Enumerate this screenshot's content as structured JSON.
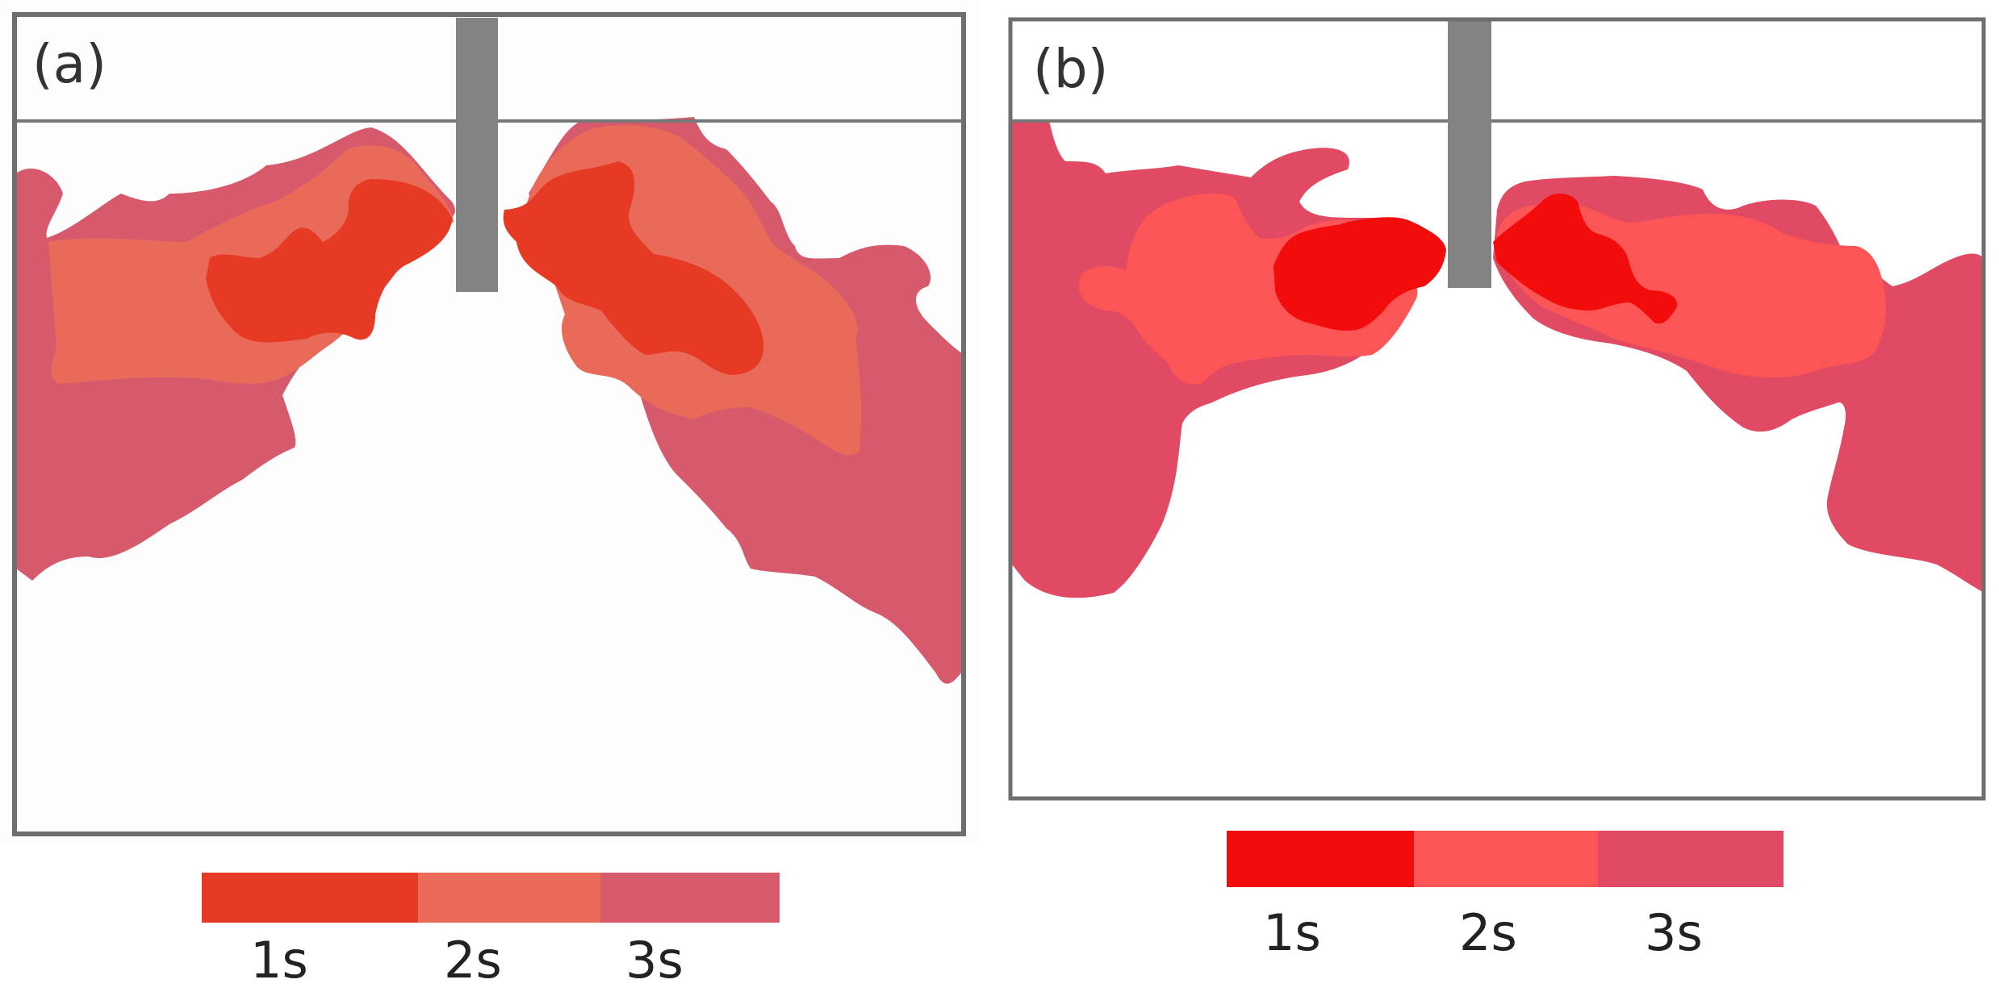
{
  "panels": [
    {
      "label": "(a)",
      "colors": {
        "t1": "#e63a24",
        "t2": "#ea6a5a",
        "t3": "#d65a6c"
      },
      "legend": [
        {
          "label": "1s",
          "color": "#e63a24"
        },
        {
          "label": "2s",
          "color": "#ea6a5a"
        },
        {
          "label": "3s",
          "color": "#d65a6c"
        }
      ]
    },
    {
      "label": "(b)",
      "colors": {
        "t1": "#f20c0c",
        "t2": "#fb5556",
        "t3": "#e04a62"
      },
      "legend": [
        {
          "label": "1s",
          "color": "#f20c0c"
        },
        {
          "label": "2s",
          "color": "#fb5556"
        },
        {
          "label": "3s",
          "color": "#e04a62"
        }
      ]
    }
  ],
  "theme": {
    "frame": "#6e6e6e",
    "nozzle": "#838383"
  }
}
